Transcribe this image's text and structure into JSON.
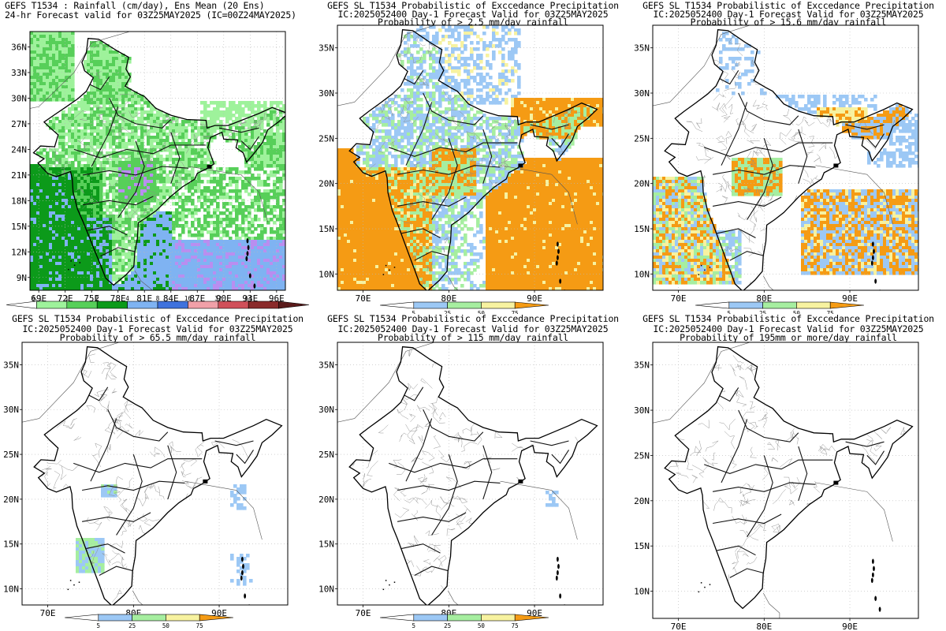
{
  "panels": [
    {
      "id": "p1",
      "title_lines": [
        "GEFS T1534 : Rainfall (cm/day), Ens Mean (20 Ens)",
        "24-hr Forecast valid for 03Z25MAY2025 (IC=00Z24MAY2025)"
      ],
      "lat_labels": [
        "36N",
        "33N",
        "30N",
        "27N",
        "24N",
        "21N",
        "18N",
        "15N",
        "12N",
        "9N"
      ],
      "lon_labels": [
        "69E",
        "72E",
        "75E",
        "78E",
        "81E",
        "84E",
        "87E",
        "90E",
        "93E",
        "96E"
      ],
      "colorbar": {
        "labels": [
          "0.1",
          "1",
          "2",
          "4",
          "8",
          "16",
          "32",
          "64"
        ],
        "colors": [
          "#ffffff",
          "#9ef29b",
          "#57cf59",
          "#0c9a1a",
          "#7fb3f2",
          "#3f72dd",
          "#f0a0a8",
          "#d0505a",
          "#8a2a2a",
          "#5a1a1a"
        ]
      }
    },
    {
      "id": "p2",
      "title_lines": [
        "GEFS SL T1534 Probabilistic of Exccedance Precipitation",
        "IC:2025052400 Day-1 Forecast Valid for 03Z25MAY2025",
        "Probability of > 2.5 mm/day rainfall"
      ],
      "lat_labels": [
        "35N",
        "30N",
        "25N",
        "20N",
        "15N",
        "10N"
      ],
      "lon_labels": [
        "70E",
        "80E",
        "90E"
      ],
      "colorbar": {
        "labels": [
          "5",
          "25",
          "50",
          "75"
        ],
        "colors": [
          "#ffffff",
          "#9cc8f5",
          "#a6eea0",
          "#f7f2a0",
          "#f59b14"
        ]
      }
    },
    {
      "id": "p3",
      "title_lines": [
        "GEFS SL T1534 Probabilistic of Exccedance Precipitation",
        "IC:2025052400 Day-1 Forecast Valid for 03Z25MAY2025",
        "Probability of > 15.6 mm/day rainfall"
      ],
      "lat_labels": [
        "35N",
        "30N",
        "25N",
        "20N",
        "15N",
        "10N"
      ],
      "lon_labels": [
        "70E",
        "80E",
        "90E"
      ],
      "colorbar": {
        "labels": [
          "5",
          "25",
          "50",
          "75"
        ],
        "colors": [
          "#ffffff",
          "#9cc8f5",
          "#a6eea0",
          "#f7f2a0",
          "#f59b14"
        ]
      }
    },
    {
      "id": "p4",
      "title_lines": [
        "GEFS SL T1534 Probabilistic of Exccedance Precipitation",
        "IC:2025052400 Day-1 Forecast Valid for 03Z25MAY2025",
        "Probability of > 65.5 mm/day rainfall"
      ],
      "lat_labels": [
        "35N",
        "30N",
        "25N",
        "20N",
        "15N",
        "10N"
      ],
      "lon_labels": [
        "70E",
        "80E",
        "90E"
      ],
      "colorbar": {
        "labels": [
          "5",
          "25",
          "50",
          "75"
        ],
        "colors": [
          "#ffffff",
          "#9cc8f5",
          "#a6eea0",
          "#f7f2a0",
          "#f59b14"
        ]
      }
    },
    {
      "id": "p5",
      "title_lines": [
        "GEFS SL T1534 Probabilistic of Exccedance Precipitation",
        "IC:2025052400 Day-1 Forecast Valid for 03Z25MAY2025",
        "Probability of > 115 mm/day rainfall"
      ],
      "lat_labels": [
        "35N",
        "30N",
        "25N",
        "20N",
        "15N",
        "10N"
      ],
      "lon_labels": [
        "70E",
        "80E",
        "90E"
      ],
      "colorbar": {
        "labels": [
          "5",
          "25",
          "50",
          "75"
        ],
        "colors": [
          "#ffffff",
          "#9cc8f5",
          "#a6eea0",
          "#f7f2a0",
          "#f59b14"
        ]
      }
    },
    {
      "id": "p6",
      "title_lines": [
        "GEFS SL T1534 Probabilistic of Exccedance Precipitation",
        "IC:2025052400 Day-1 Forecast Valid for 03Z25MAY2025",
        "Probability of 195mm or more/day rainfall"
      ],
      "lat_labels": [
        "35N",
        "30N",
        "25N",
        "20N",
        "15N",
        "10N"
      ],
      "lon_labels": [
        "70E",
        "80E",
        "90E"
      ],
      "colorbar": null
    }
  ]
}
